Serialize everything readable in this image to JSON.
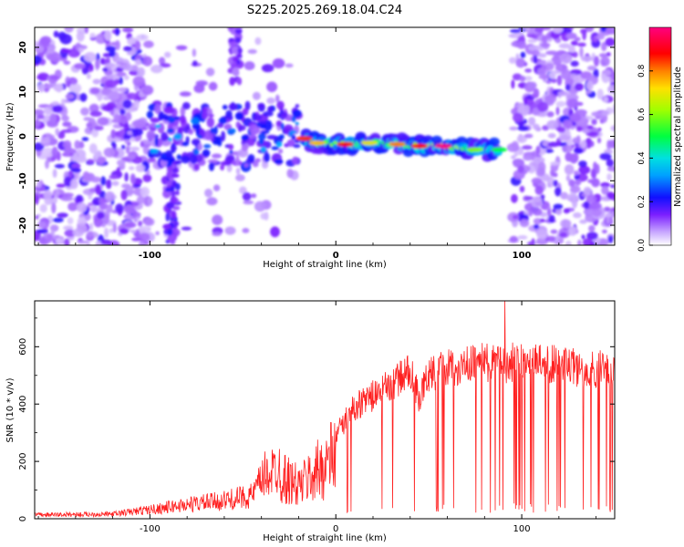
{
  "title": "S225.2025.269.18.04.C24",
  "chart_data": [
    {
      "type": "heatmap",
      "title": "S225.2025.269.18.04.C24",
      "xlabel": "Height of straight line (km)",
      "ylabel": "Frequency (Hz)",
      "xlim": [
        -162,
        150
      ],
      "ylim": [
        -24.5,
        24.5
      ],
      "xticks": [
        -100,
        0,
        100
      ],
      "yticks": [
        -20,
        -10,
        0,
        10,
        20
      ],
      "colorbar": {
        "label": "Normalized spectral amplitude",
        "range": [
          0,
          1
        ],
        "ticks": [
          0.0,
          0.2,
          0.4,
          0.6,
          0.8
        ],
        "tick_labels": [
          "0.0",
          "0.2",
          "0.4",
          "0.6",
          "0.8"
        ],
        "colormap": [
          "#ffffff",
          "#7b1fff",
          "#1010ff",
          "#00c8ff",
          "#00ff40",
          "#c8ff00",
          "#ffc000",
          "#ff0000",
          "#ff0080"
        ]
      },
      "features": {
        "noise_regions_x": [
          [
            -162,
            -100
          ],
          [
            95,
            150
          ]
        ],
        "ridge": [
          {
            "x": -17,
            "y": -0.5,
            "amp": 0.85
          },
          {
            "x": -10,
            "y": -1.5,
            "amp": 0.75
          },
          {
            "x": 5,
            "y": -1.8,
            "amp": 0.9
          },
          {
            "x": 18,
            "y": -1.5,
            "amp": 0.7
          },
          {
            "x": 33,
            "y": -1.8,
            "amp": 0.8
          },
          {
            "x": 45,
            "y": -2.2,
            "amp": 0.9
          },
          {
            "x": 58,
            "y": -2.2,
            "amp": 1.0
          },
          {
            "x": 75,
            "y": -3.0,
            "amp": 0.6
          },
          {
            "x": 88,
            "y": -3.0,
            "amp": 0.5
          }
        ]
      }
    },
    {
      "type": "line",
      "xlabel": "Height of straight line (km)",
      "ylabel": "SNR (10 * v/v)",
      "xlim": [
        -162,
        150
      ],
      "ylim": [
        0,
        760
      ],
      "xticks": [
        -100,
        0,
        100
      ],
      "yticks": [
        0,
        200,
        400,
        600
      ],
      "color": "#ff2020",
      "envelope": {
        "x": [
          -162,
          -120,
          -100,
          -80,
          -60,
          -45,
          -38,
          -30,
          -20,
          -10,
          0,
          10,
          20,
          30,
          40,
          45,
          50,
          60,
          70,
          80,
          90,
          100,
          110,
          120,
          130,
          140,
          150
        ],
        "y": [
          15,
          18,
          35,
          55,
          70,
          90,
          170,
          200,
          150,
          220,
          300,
          400,
          440,
          480,
          530,
          430,
          520,
          540,
          550,
          560,
          550,
          570,
          560,
          550,
          540,
          535,
          540
        ]
      },
      "spike_peak": {
        "x": 91,
        "y": 760
      }
    }
  ]
}
